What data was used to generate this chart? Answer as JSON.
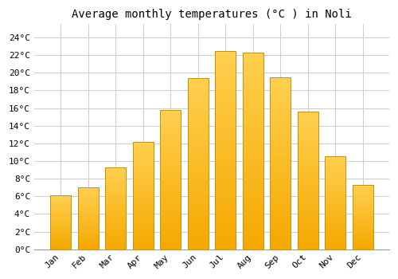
{
  "title": "Average monthly temperatures (°C ) in Noli",
  "months": [
    "Jan",
    "Feb",
    "Mar",
    "Apr",
    "May",
    "Jun",
    "Jul",
    "Aug",
    "Sep",
    "Oct",
    "Nov",
    "Dec"
  ],
  "temperatures": [
    6.1,
    7.0,
    9.3,
    12.2,
    15.8,
    19.4,
    22.5,
    22.3,
    19.5,
    15.6,
    10.5,
    7.3
  ],
  "bar_color_top": "#FFD050",
  "bar_color_bottom": "#F5A800",
  "bar_edge_color": "#C8900A",
  "background_color": "#FFFFFF",
  "grid_color": "#CCCCCC",
  "ytick_labels": [
    "0°C",
    "2°C",
    "4°C",
    "6°C",
    "8°C",
    "10°C",
    "12°C",
    "14°C",
    "16°C",
    "18°C",
    "20°C",
    "22°C",
    "24°C"
  ],
  "ytick_values": [
    0,
    2,
    4,
    6,
    8,
    10,
    12,
    14,
    16,
    18,
    20,
    22,
    24
  ],
  "ylim": [
    0,
    25.5
  ],
  "title_fontsize": 10,
  "tick_fontsize": 8,
  "font_family": "monospace"
}
